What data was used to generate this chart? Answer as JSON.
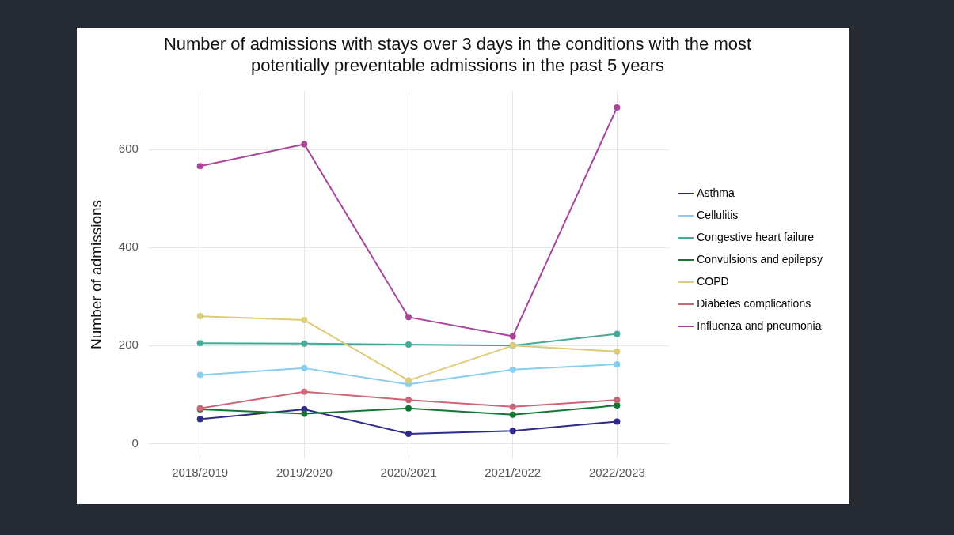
{
  "chart_data": {
    "type": "line",
    "title": "Number of admissions with stays over 3 days in the conditions with the most\npotentially preventable admissions in the past 5 years",
    "ylabel": "Number of admissions",
    "categories": [
      "2018/2019",
      "2019/2020",
      "2020/2021",
      "2021/2022",
      "2022/2023"
    ],
    "series": [
      {
        "name": "Asthma",
        "color": "#2e2a8c",
        "values": [
          50,
          70,
          20,
          26,
          45
        ]
      },
      {
        "name": "Cellulitis",
        "color": "#88ccee",
        "values": [
          140,
          154,
          121,
          151,
          162
        ]
      },
      {
        "name": "Congestive heart failure",
        "color": "#44aa99",
        "values": [
          205,
          204,
          202,
          200,
          224
        ]
      },
      {
        "name": "Convulsions and epilepsy",
        "color": "#117733",
        "values": [
          70,
          61,
          72,
          59,
          78
        ]
      },
      {
        "name": "COPD",
        "color": "#ddcc77",
        "values": [
          260,
          252,
          129,
          200,
          188
        ]
      },
      {
        "name": "Diabetes complications",
        "color": "#cc6677",
        "values": [
          72,
          106,
          89,
          75,
          89
        ]
      },
      {
        "name": "Influenza and pneumonia",
        "color": "#aa4499",
        "values": [
          566,
          611,
          258,
          219,
          686
        ]
      }
    ],
    "ylim": [
      -30,
      720
    ],
    "yticks": [
      0,
      200,
      400,
      600
    ],
    "grid": true,
    "legend": "right",
    "marker": "circle",
    "line_style": "solid"
  }
}
